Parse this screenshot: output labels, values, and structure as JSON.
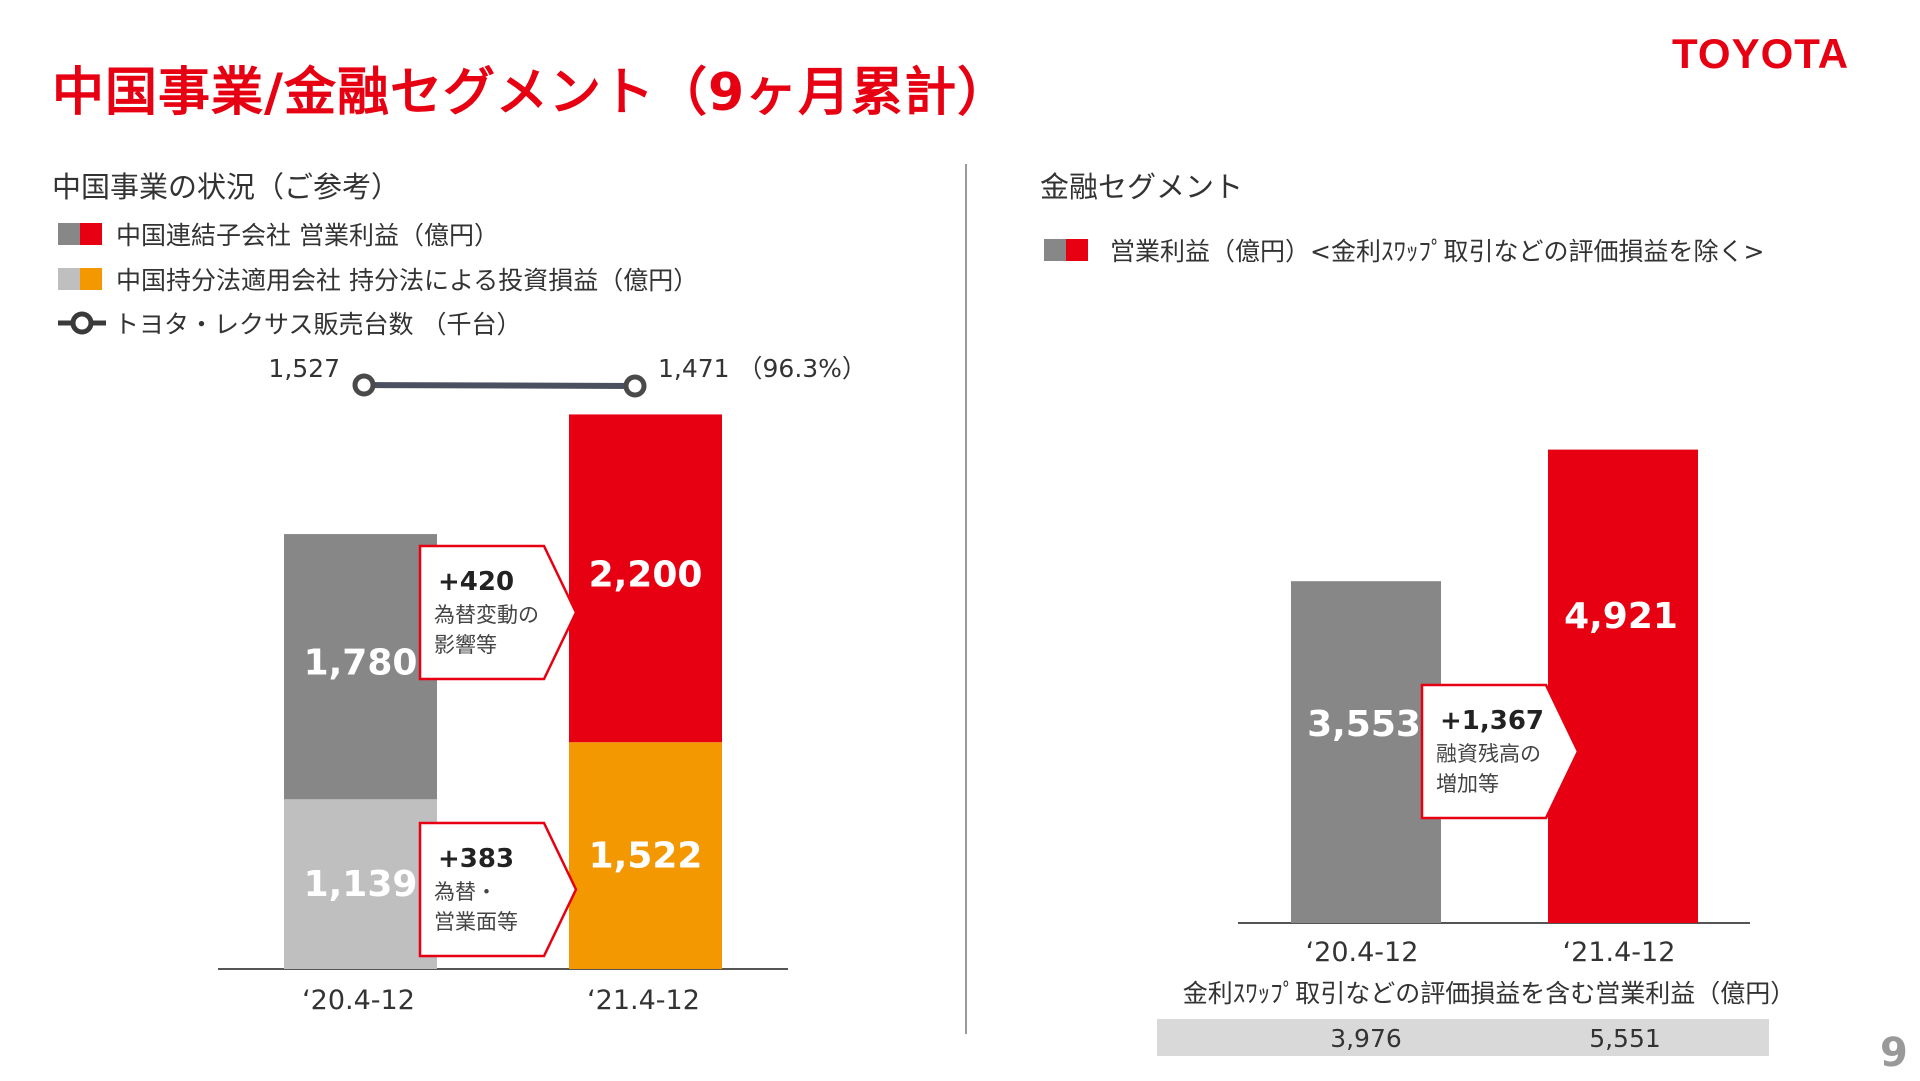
{
  "header": {
    "title": "中国事業/金融セグメント（9ヶ月累計）",
    "logo": "TOYOTA",
    "page_number": "9"
  },
  "colors": {
    "brand_red": "#e60012",
    "gray": "#878787",
    "light_gray": "#bfbfbf",
    "orange": "#f39800",
    "band": "#d9d9d9"
  },
  "left": {
    "heading": "中国事業の状況（ご参考）",
    "legend": [
      {
        "label": "中国連結子会社 営業利益（億円）",
        "colors": [
          "#878787",
          "#e60012"
        ]
      },
      {
        "label": "中国持分法適用会社 持分法による投資損益（億円）",
        "colors": [
          "#bfbfbf",
          "#f39800"
        ]
      },
      {
        "label": "トヨタ・レクサス販売台数 （千台）",
        "icon": "line-marker-icon"
      }
    ]
  },
  "right": {
    "heading": "金融セグメント",
    "legend": [
      {
        "label": "営業利益（億円）<金利ｽﾜｯﾌﾟ取引などの評価損益を除く>",
        "colors": [
          "#878787",
          "#e60012"
        ]
      }
    ],
    "footnote": "金利ｽﾜｯﾌﾟ取引などの評価損益を含む営業利益（億円）",
    "footnote_values": [
      "3,976",
      "5,551"
    ]
  },
  "chart_data": [
    {
      "type": "bar",
      "stacked": true,
      "categories": [
        "‘20.4-12",
        "‘21.4-12"
      ],
      "series": [
        {
          "name": "中国持分法適用会社 持分法による投資損益（億円）",
          "values": [
            1139,
            1522
          ],
          "labels": [
            "1,139",
            "1,522"
          ]
        },
        {
          "name": "中国連結子会社 営業利益（億円）",
          "values": [
            1780,
            2200
          ],
          "labels": [
            "1,780",
            "2,200"
          ]
        }
      ],
      "line_series": {
        "name": "トヨタ・レクサス販売台数 （千台）",
        "values": [
          1527,
          1471
        ],
        "labels": [
          "1,527",
          "1,471 （96.3%）"
        ]
      },
      "annotations": [
        {
          "value": "+420",
          "text": [
            "為替変動の",
            "影響等"
          ]
        },
        {
          "value": "+383",
          "text": [
            "為替・",
            "営業面等"
          ]
        }
      ]
    },
    {
      "type": "bar",
      "categories": [
        "‘20.4-12",
        "‘21.4-12"
      ],
      "series": [
        {
          "name": "営業利益（億円）<金利ｽﾜｯﾌﾟ取引などの評価損益を除く>",
          "values": [
            3553,
            4921
          ],
          "labels": [
            "3,553",
            "4,921"
          ]
        }
      ],
      "annotations": [
        {
          "value": "+1,367",
          "text": [
            "融資残高の",
            "増加等"
          ]
        }
      ]
    }
  ]
}
